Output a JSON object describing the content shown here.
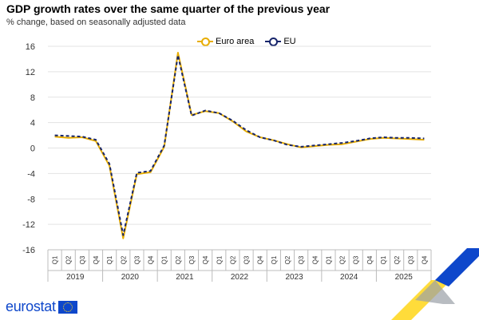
{
  "title": "GDP growth rates over the same quarter of the previous year",
  "subtitle": "% change, based on seasonally adjusted data",
  "logo_text": "eurostat",
  "colors": {
    "euro_area": "#e8ad00",
    "eu": "#17256b"
  },
  "chart_data": {
    "type": "line",
    "years": [
      "2019",
      "2020",
      "2021",
      "2022",
      "2023",
      "2024",
      "2025"
    ],
    "quarters": [
      "Q1",
      "Q2",
      "Q3",
      "Q4"
    ],
    "x": [
      "2019-Q1",
      "2019-Q2",
      "2019-Q3",
      "2019-Q4",
      "2020-Q1",
      "2020-Q2",
      "2020-Q3",
      "2020-Q4",
      "2021-Q1",
      "2021-Q2",
      "2021-Q3",
      "2021-Q4",
      "2022-Q1",
      "2022-Q2",
      "2022-Q3",
      "2022-Q4",
      "2023-Q1",
      "2023-Q2",
      "2023-Q3",
      "2023-Q4",
      "2024-Q1",
      "2024-Q2",
      "2024-Q3",
      "2024-Q4",
      "2025-Q1",
      "2025-Q2",
      "2025-Q3",
      "2025-Q4"
    ],
    "series": [
      {
        "name": "Euro area",
        "color": "#e8ad00",
        "values": [
          1.8,
          1.6,
          1.7,
          1.1,
          -2.8,
          -14.2,
          -4.1,
          -3.8,
          0.2,
          15.0,
          5.2,
          5.8,
          5.5,
          4.2,
          2.6,
          1.7,
          1.2,
          0.6,
          0.1,
          0.3,
          0.5,
          0.6,
          1.0,
          1.4,
          1.6,
          1.5,
          1.4,
          1.3
        ]
      },
      {
        "name": "EU",
        "color": "#17256b",
        "values": [
          2.0,
          1.9,
          1.8,
          1.3,
          -2.5,
          -13.7,
          -3.9,
          -3.6,
          0.4,
          14.6,
          5.1,
          5.9,
          5.5,
          4.3,
          2.8,
          1.7,
          1.2,
          0.5,
          0.2,
          0.4,
          0.6,
          0.8,
          1.1,
          1.5,
          1.7,
          1.6,
          1.6,
          1.5
        ]
      }
    ],
    "ylim": [
      -16,
      16
    ],
    "yticks": [
      16,
      12,
      8,
      4,
      0,
      -4,
      -8,
      -12,
      -16
    ],
    "grid": true,
    "legend_position": "top-center"
  }
}
